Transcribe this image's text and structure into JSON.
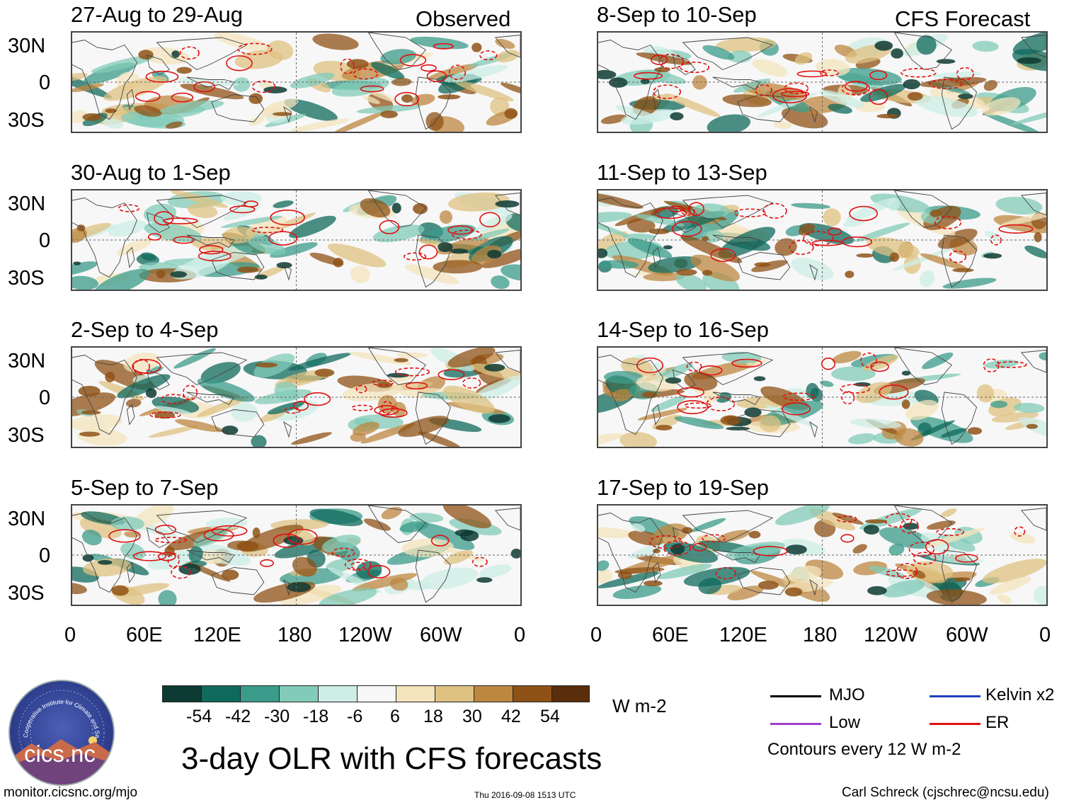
{
  "colors": {
    "palette": [
      "#0d3a32",
      "#0f6a5c",
      "#3b9b8a",
      "#82cbb8",
      "#cdeee6",
      "#f7f7f7",
      "#f4e4bd",
      "#dfc182",
      "#bd8740",
      "#8f5216",
      "#5a2e0a"
    ],
    "mjo": "#000000",
    "kelvin": "#1f3fbf",
    "low": "#a040d0",
    "er": "#e01010",
    "grid": "#444444"
  },
  "panels": {
    "observed_heading": "Observed",
    "forecast_heading": "CFS Forecast",
    "left": [
      {
        "title": "27-Aug to 29-Aug"
      },
      {
        "title": "30-Aug to 1-Sep"
      },
      {
        "title": "2-Sep to 4-Sep"
      },
      {
        "title": "5-Sep to 7-Sep"
      }
    ],
    "right": [
      {
        "title": "8-Sep to 10-Sep"
      },
      {
        "title": "11-Sep to 13-Sep"
      },
      {
        "title": "14-Sep to 16-Sep"
      },
      {
        "title": "17-Sep to 19-Sep"
      }
    ]
  },
  "axes": {
    "lat_labels": [
      "30N",
      "0",
      "30S"
    ],
    "lon_labels": [
      "0",
      "60E",
      "120E",
      "180",
      "120W",
      "60W",
      "0"
    ]
  },
  "colorbar": {
    "ticks": [
      "-54",
      "-42",
      "-30",
      "-18",
      "-6",
      "6",
      "18",
      "30",
      "42",
      "54"
    ],
    "units": "W m-2"
  },
  "legend": {
    "mjo": "MJO",
    "kelvin": "Kelvin x2",
    "low": "Low",
    "er": "ER",
    "contours": "Contours every 12 W m-2"
  },
  "title": "3-day OLR with CFS forecasts",
  "footer": {
    "url": "monitor.cicsnc.org/mjo",
    "timestamp": "Thu 2016-09-08 1513 UTC",
    "credit": "Carl Schreck (cjschrec@ncsu.edu)"
  },
  "logo": {
    "text": "cics.nc",
    "ring_text": "Cooperative Institute for Climate and Satellites"
  }
}
